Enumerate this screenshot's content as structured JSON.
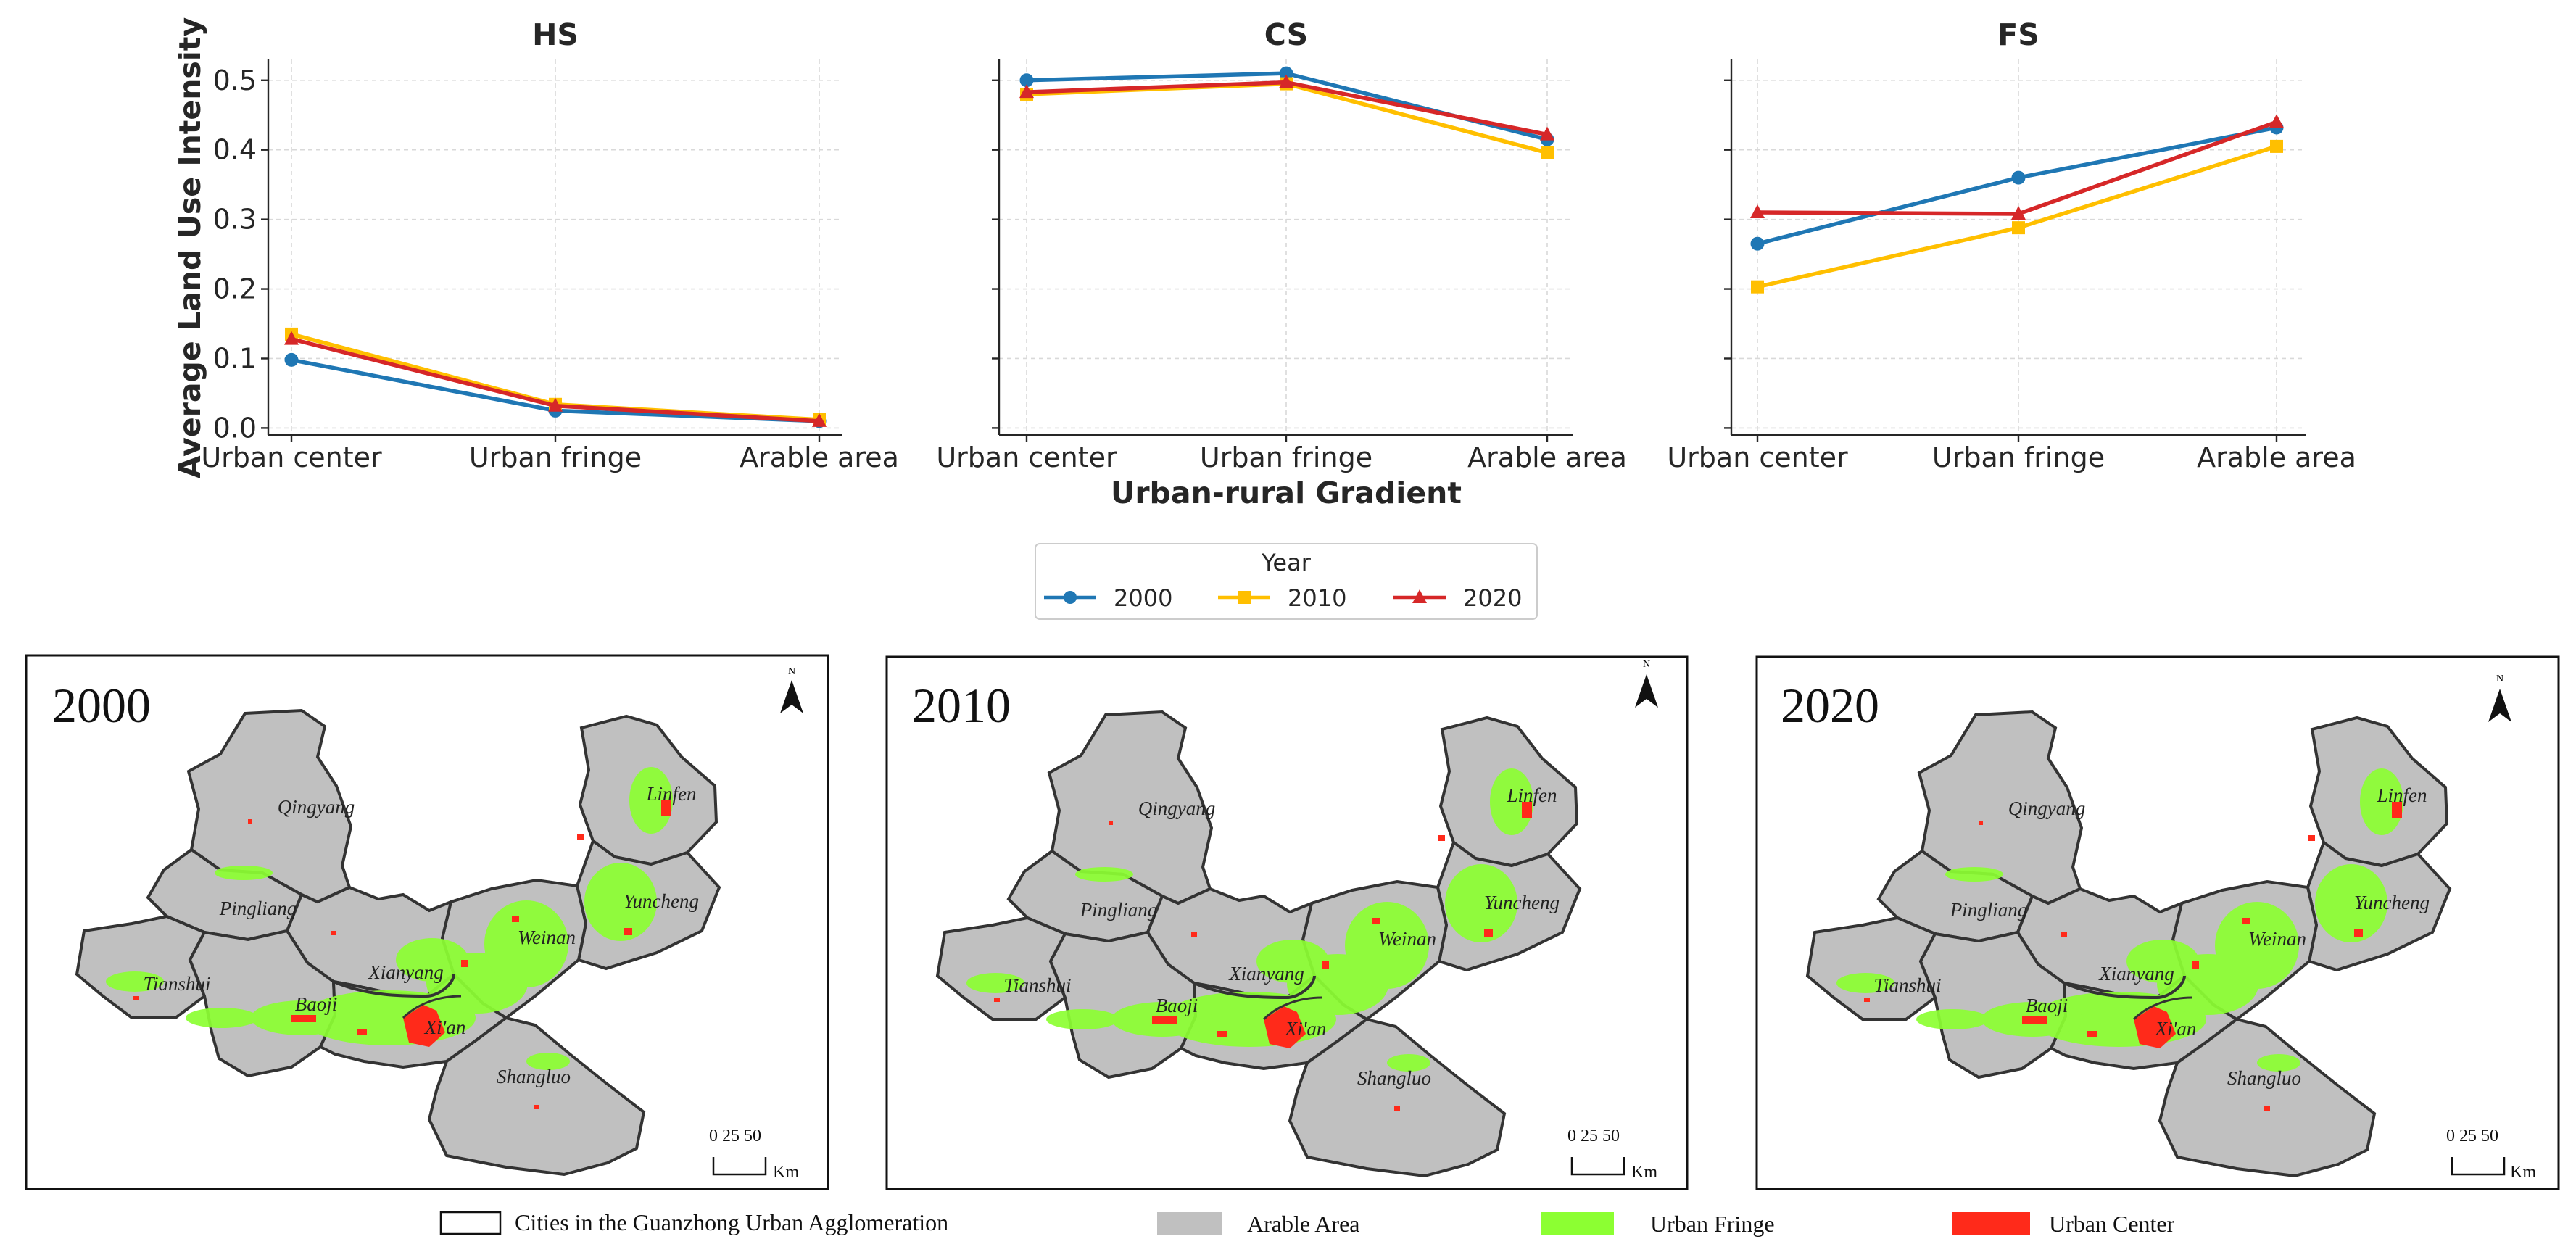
{
  "chart_data": [
    {
      "type": "line",
      "title": "HS",
      "categories": [
        "Urban center",
        "Urban fringe",
        "Arable area"
      ],
      "series": [
        {
          "name": "2000",
          "values": [
            0.098,
            0.025,
            0.01
          ]
        },
        {
          "name": "2010",
          "values": [
            0.135,
            0.034,
            0.012
          ]
        },
        {
          "name": "2020",
          "values": [
            0.128,
            0.032,
            0.01
          ]
        }
      ],
      "ylabel": "Average Land Use Intensity",
      "ylim": [
        -0.01,
        0.53
      ],
      "yticks": [
        0.0,
        0.1,
        0.2,
        0.3,
        0.4,
        0.5
      ],
      "grid": true
    },
    {
      "type": "line",
      "title": "CS",
      "categories": [
        "Urban center",
        "Urban fringe",
        "Arable area"
      ],
      "series": [
        {
          "name": "2000",
          "values": [
            0.5,
            0.51,
            0.415
          ]
        },
        {
          "name": "2010",
          "values": [
            0.48,
            0.495,
            0.396
          ]
        },
        {
          "name": "2020",
          "values": [
            0.483,
            0.497,
            0.422
          ]
        }
      ],
      "ylim": [
        -0.01,
        0.53
      ],
      "grid": true
    },
    {
      "type": "line",
      "title": "FS",
      "categories": [
        "Urban center",
        "Urban fringe",
        "Arable area"
      ],
      "series": [
        {
          "name": "2000",
          "values": [
            0.265,
            0.36,
            0.432
          ]
        },
        {
          "name": "2010",
          "values": [
            0.203,
            0.288,
            0.405
          ]
        },
        {
          "name": "2020",
          "values": [
            0.31,
            0.308,
            0.44
          ]
        }
      ],
      "ylim": [
        -0.01,
        0.53
      ],
      "grid": true
    }
  ],
  "shared_xlabel": "Urban-rural Gradient",
  "legend": {
    "title": "Year",
    "placement": "below plots, centered",
    "entries": [
      {
        "label": "2000",
        "color": "#1f77b4",
        "marker": "circle"
      },
      {
        "label": "2010",
        "color": "#ffbf00",
        "marker": "square"
      },
      {
        "label": "2020",
        "color": "#d62728",
        "marker": "triangle"
      }
    ]
  },
  "maps": [
    {
      "year": "2000"
    },
    {
      "year": "2010"
    },
    {
      "year": "2020"
    }
  ],
  "city_labels": [
    "Qingyang",
    "Linfen",
    "Pingliang",
    "Yuncheng",
    "Weinan",
    "Xianyang",
    "Tianshui",
    "Baoji",
    "Xi'an",
    "Shangluo"
  ],
  "north_arrow_label": "N",
  "scale_bar": {
    "ticks": "0 25 50",
    "unit": "Km"
  },
  "map_legend": [
    {
      "label": "Cities in the Guanzhong Urban  Agglomeration",
      "color": "#ffffff"
    },
    {
      "label": "Arable Area",
      "color": "#c0c0c0"
    },
    {
      "label": "Urban Fringe",
      "color": "#8cff32"
    },
    {
      "label": "Urban Center",
      "color": "#ff2a1a"
    }
  ]
}
